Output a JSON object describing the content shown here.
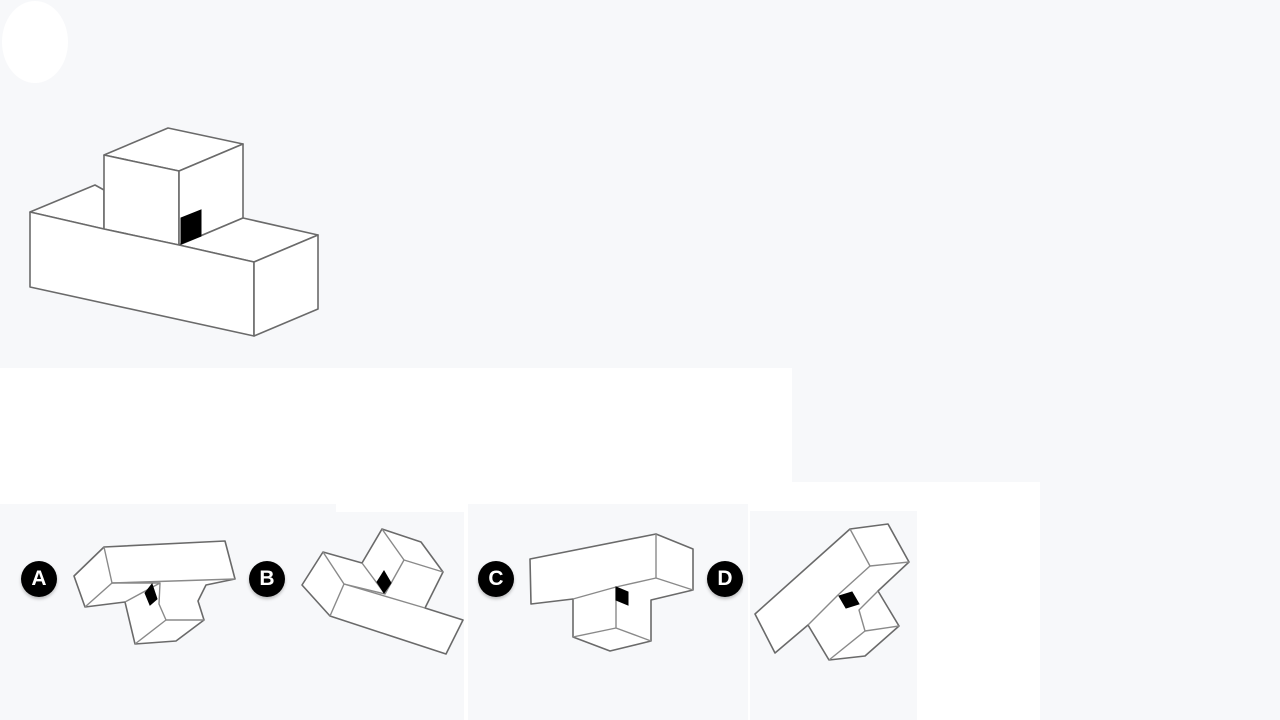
{
  "options": [
    {
      "letter": "A"
    },
    {
      "letter": "B"
    },
    {
      "letter": "C"
    },
    {
      "letter": "D"
    }
  ]
}
